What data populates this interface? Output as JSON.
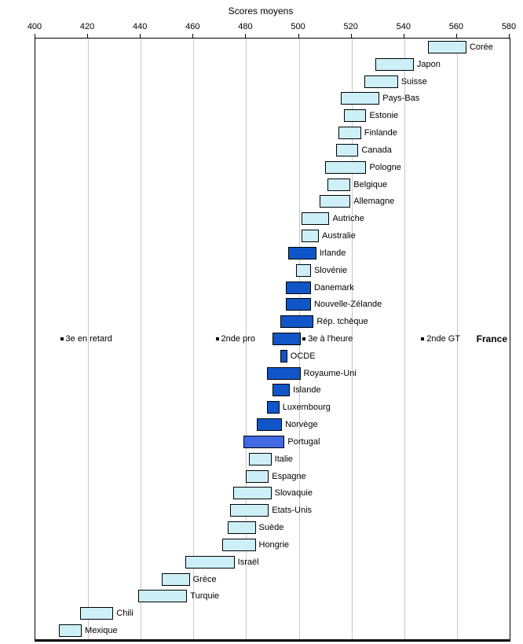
{
  "title": "Scores moyens",
  "axis": {
    "min": 400,
    "max": 580,
    "step": 20,
    "ticks": [
      400,
      420,
      440,
      460,
      480,
      500,
      520,
      540,
      560,
      580
    ]
  },
  "colors": {
    "light": "#cdf0f8",
    "dark": "#1156c9",
    "medium": "#4169e1",
    "bar_border": "#000000",
    "grid": "#c8c8c8"
  },
  "chart_data": {
    "type": "bar",
    "orientation": "horizontal-range",
    "title": "Scores moyens",
    "xlabel": "Scores moyens",
    "xlim": [
      400,
      580
    ],
    "grid": "vertical",
    "rows": [
      {
        "label": "Corée",
        "low": 549,
        "high": 563,
        "style": "light"
      },
      {
        "label": "Japon",
        "low": 529,
        "high": 543,
        "style": "light"
      },
      {
        "label": "Suisse",
        "low": 525,
        "high": 537,
        "style": "light"
      },
      {
        "label": "Pays-Bas",
        "low": 516,
        "high": 530,
        "style": "light"
      },
      {
        "label": "Estonie",
        "low": 517,
        "high": 525,
        "style": "light"
      },
      {
        "label": "Finlande",
        "low": 515,
        "high": 523,
        "style": "light"
      },
      {
        "label": "Canada",
        "low": 514,
        "high": 522,
        "style": "light"
      },
      {
        "label": "Pologne",
        "low": 510,
        "high": 525,
        "style": "light"
      },
      {
        "label": "Belgique",
        "low": 511,
        "high": 519,
        "style": "light"
      },
      {
        "label": "Allemagne",
        "low": 508,
        "high": 519,
        "style": "light"
      },
      {
        "label": "Autriche",
        "low": 501,
        "high": 511,
        "style": "light"
      },
      {
        "label": "Australie",
        "low": 501,
        "high": 507,
        "style": "light"
      },
      {
        "label": "Irlande",
        "low": 496,
        "high": 506,
        "style": "dark"
      },
      {
        "label": "Slovénie",
        "low": 499,
        "high": 504,
        "style": "light"
      },
      {
        "label": "Danemark",
        "low": 495,
        "high": 504,
        "style": "dark"
      },
      {
        "label": "Nouvelle-Zélande",
        "low": 495,
        "high": 504,
        "style": "dark"
      },
      {
        "label": "Rép. tchèque",
        "low": 493,
        "high": 505,
        "style": "dark"
      },
      {
        "label": "France",
        "low": 490,
        "high": 500,
        "style": "dark"
      },
      {
        "label": "OCDE",
        "low": 493,
        "high": 495,
        "style": "dark"
      },
      {
        "label": "Royaume-Uni",
        "low": 488,
        "high": 500,
        "style": "dark"
      },
      {
        "label": "Islande",
        "low": 490,
        "high": 496,
        "style": "dark"
      },
      {
        "label": "Luxembourg",
        "low": 488,
        "high": 492,
        "style": "dark"
      },
      {
        "label": "Norvège",
        "low": 484,
        "high": 493,
        "style": "dark"
      },
      {
        "label": "Portugal",
        "low": 479,
        "high": 494,
        "style": "medium"
      },
      {
        "label": "Italie",
        "low": 481,
        "high": 489,
        "style": "light"
      },
      {
        "label": "Espagne",
        "low": 480,
        "high": 488,
        "style": "light"
      },
      {
        "label": "Slovaquie",
        "low": 475,
        "high": 489,
        "style": "light"
      },
      {
        "label": "Etats-Unis",
        "low": 474,
        "high": 488,
        "style": "light"
      },
      {
        "label": "Suède",
        "low": 473,
        "high": 483,
        "style": "light"
      },
      {
        "label": "Hongrie",
        "low": 471,
        "high": 483,
        "style": "light"
      },
      {
        "label": "Israël",
        "low": 457,
        "high": 475,
        "style": "light"
      },
      {
        "label": "Grèce",
        "low": 448,
        "high": 458,
        "style": "light"
      },
      {
        "label": "Turquie",
        "low": 439,
        "high": 457,
        "style": "light"
      },
      {
        "label": "Chili",
        "low": 417,
        "high": 429,
        "style": "light"
      },
      {
        "label": "Mexique",
        "low": 409,
        "high": 417,
        "style": "light"
      }
    ],
    "france_markers": [
      {
        "label": "3e en retard",
        "value": 410
      },
      {
        "label": "2nde pro",
        "value": 469
      },
      {
        "label": "3e à l'heure",
        "value": 502
      },
      {
        "label": "2nde GT",
        "value": 547
      }
    ],
    "france_row_label": "France"
  }
}
